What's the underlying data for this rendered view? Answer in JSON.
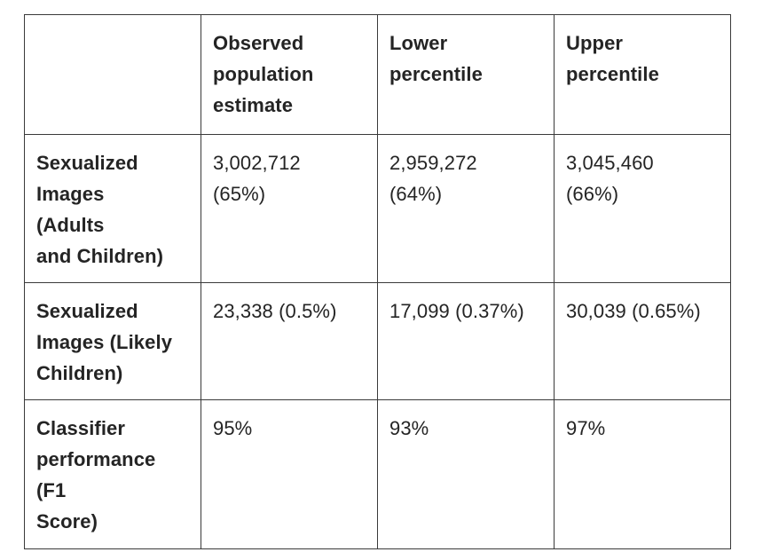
{
  "table": {
    "header_cells": [
      "",
      "Observed\npopulation\nestimate",
      "Lower\npercentile",
      "Upper\npercentile"
    ],
    "rows": [
      {
        "cells": [
          "Sexualized\nImages\n(Adults\nand Children)",
          "3,002,712\n(65%)",
          "2,959,272\n(64%)",
          "3,045,460\n(66%)"
        ]
      },
      {
        "cells": [
          "Sexualized\nImages (Likely\nChildren)",
          "23,338 (0.5%)",
          "17,099 (0.37%)",
          "30,039 (0.65%)"
        ]
      },
      {
        "cells": [
          "Classifier\nperformance\n(F1\nScore)",
          "95%",
          "93%",
          "97%"
        ]
      }
    ]
  },
  "chart_data": {
    "type": "table",
    "columns": [
      "",
      "Observed population estimate",
      "Lower percentile",
      "Upper percentile"
    ],
    "rows": [
      [
        "Sexualized Images (Adults and Children)",
        "3,002,712 (65%)",
        "2,959,272 (64%)",
        "3,045,460 (66%)"
      ],
      [
        "Sexualized Images (Likely Children)",
        "23,338 (0.5%)",
        "17,099 (0.37%)",
        "30,039 (0.65%)"
      ],
      [
        "Classifier performance (F1 Score)",
        "95%",
        "93%",
        "97%"
      ]
    ]
  },
  "colors": {
    "border": "#3a3a3a",
    "text": "#242424",
    "background": "#ffffff"
  }
}
